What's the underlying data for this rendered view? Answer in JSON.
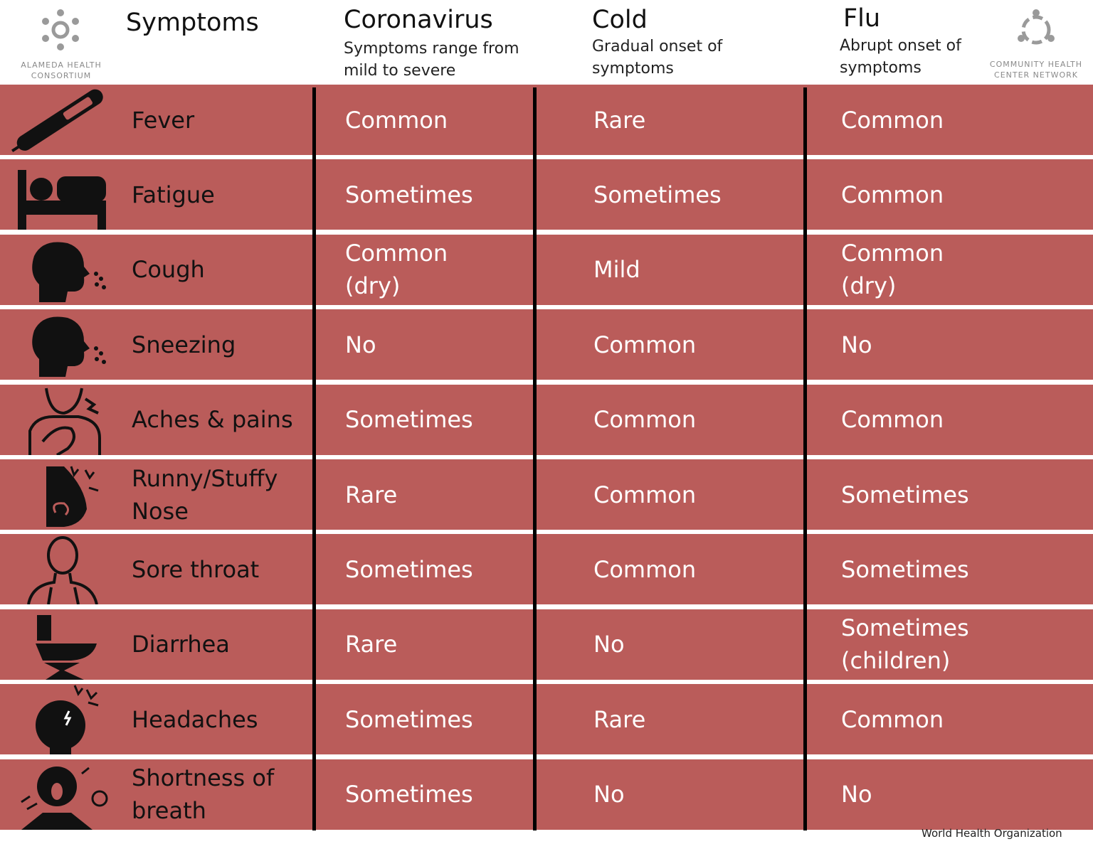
{
  "header": {
    "left_logo": "ALAMEDA HEALTH CONSORTIUM",
    "right_logo": "COMMUNITY HEALTH CENTER NETWORK",
    "columns": [
      {
        "title": "Symptoms"
      },
      {
        "title": "Coronavirus",
        "subtitle": "Symptoms range from mild to severe"
      },
      {
        "title": "Cold",
        "subtitle": "Gradual onset of symptoms"
      },
      {
        "title": "Flu",
        "subtitle": "Abrupt onset of symptoms"
      }
    ]
  },
  "table": {
    "rows": [
      [
        "Fever",
        "Common",
        "Rare",
        "Common"
      ],
      [
        "Fatigue",
        "Sometimes",
        "Sometimes",
        "Common"
      ],
      [
        "Cough",
        "Common (dry)",
        "Mild",
        "Common (dry)"
      ],
      [
        "Sneezing",
        "No",
        "Common",
        "No"
      ],
      [
        "Aches & pains",
        "Sometimes",
        "Common",
        "Common"
      ],
      [
        "Runny/Stuffy Nose",
        "Rare",
        "Common",
        "Sometimes"
      ],
      [
        "Sore throat",
        "Sometimes",
        "Common",
        "Sometimes"
      ],
      [
        "Diarrhea",
        "Rare",
        "No",
        "Sometimes (children)"
      ],
      [
        "Headaches",
        "Sometimes",
        "Rare",
        "Common"
      ],
      [
        "Shortness of breath",
        "Sometimes",
        "No",
        "No"
      ]
    ]
  },
  "footer": {
    "source": "World Health Organization"
  }
}
